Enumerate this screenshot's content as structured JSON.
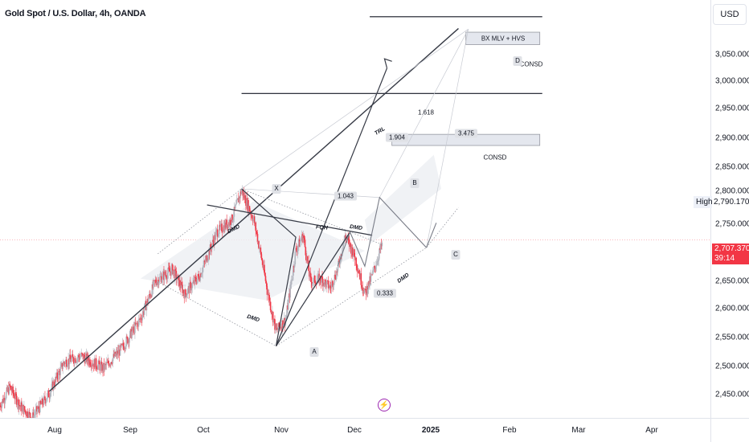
{
  "header": {
    "title": "Gold Spot / U.S. Dollar, 4h, OANDA",
    "currency_button": "USD"
  },
  "price_axis": {
    "ticks": [
      "3,050.000",
      "3,000.000",
      "2,950.000",
      "2,900.000",
      "2,850.000",
      "2,800.000",
      "2,750.000",
      "2,650.000",
      "2,600.000",
      "2,550.000",
      "2,500.000",
      "2,450.000"
    ],
    "high_label": "High",
    "high_value": "2,790.170",
    "current_price": "2,707.370",
    "countdown": "39:14",
    "current_price_color": "#f23645"
  },
  "time_axis": {
    "ticks": [
      "Aug",
      "Sep",
      "Oct",
      "Nov",
      "Dec",
      "2025",
      "Feb",
      "Mar",
      "Apr"
    ]
  },
  "chart_data": {
    "type": "line",
    "title": "Gold Spot / U.S. Dollar, 4h, OANDA",
    "ylabel": "USD",
    "ylim": [
      2420,
      3095
    ],
    "x_range": [
      "2024-07-25",
      "2025-04-30"
    ],
    "y_ticks": [
      2450,
      2500,
      2550,
      2600,
      2650,
      2700,
      2750,
      2800,
      2850,
      2900,
      2950,
      3000,
      3050
    ],
    "x_ticks": [
      "Aug",
      "Sep",
      "Oct",
      "Nov",
      "Dec",
      "2025",
      "Feb",
      "Mar",
      "Apr"
    ],
    "grid": false,
    "bull_color": "#b2b5be",
    "bear_color": "#f23645",
    "price_path": [
      {
        "date": "2024-07-25",
        "price": 2440
      },
      {
        "date": "2024-07-29",
        "price": 2470
      },
      {
        "date": "2024-08-02",
        "price": 2440
      },
      {
        "date": "2024-08-07",
        "price": 2420
      },
      {
        "date": "2024-08-14",
        "price": 2460
      },
      {
        "date": "2024-08-20",
        "price": 2510
      },
      {
        "date": "2024-08-27",
        "price": 2520
      },
      {
        "date": "2024-09-05",
        "price": 2500
      },
      {
        "date": "2024-09-12",
        "price": 2530
      },
      {
        "date": "2024-09-20",
        "price": 2580
      },
      {
        "date": "2024-09-26",
        "price": 2640
      },
      {
        "date": "2024-10-03",
        "price": 2660
      },
      {
        "date": "2024-10-08",
        "price": 2620
      },
      {
        "date": "2024-10-14",
        "price": 2650
      },
      {
        "date": "2024-10-21",
        "price": 2720
      },
      {
        "date": "2024-10-27",
        "price": 2740
      },
      {
        "date": "2024-10-31",
        "price": 2788
      },
      {
        "date": "2024-11-05",
        "price": 2740
      },
      {
        "date": "2024-11-08",
        "price": 2680
      },
      {
        "date": "2024-11-11",
        "price": 2615
      },
      {
        "date": "2024-11-14",
        "price": 2560
      },
      {
        "date": "2024-11-18",
        "price": 2580
      },
      {
        "date": "2024-11-22",
        "price": 2690
      },
      {
        "date": "2024-11-25",
        "price": 2715
      },
      {
        "date": "2024-11-28",
        "price": 2640
      },
      {
        "date": "2024-12-02",
        "price": 2645
      },
      {
        "date": "2024-12-06",
        "price": 2630
      },
      {
        "date": "2024-12-09",
        "price": 2660
      },
      {
        "date": "2024-12-12",
        "price": 2715
      },
      {
        "date": "2024-12-16",
        "price": 2680
      },
      {
        "date": "2024-12-20",
        "price": 2620
      },
      {
        "date": "2024-12-23",
        "price": 2650
      },
      {
        "date": "2024-12-27",
        "price": 2700
      }
    ],
    "harmonic_pattern": {
      "points": [
        {
          "label": "X",
          "date": "2024-10-31",
          "price": 2790
        },
        {
          "label": "A",
          "date": "2024-11-14",
          "price": 2536
        },
        {
          "label": "B",
          "date": "2024-12-26",
          "price": 2776
        },
        {
          "label": "C",
          "date": "2025-01-14",
          "price": 2695
        },
        {
          "label": "D",
          "date": "2025-01-31",
          "price": 3048
        }
      ],
      "ratios": [
        "1.043",
        "1.904",
        "3.475",
        "0.333"
      ]
    },
    "horizontal_levels": [
      {
        "label": "BX MLV + HVS",
        "price": 3068
      },
      {
        "label": "1.618",
        "price": 2944
      }
    ],
    "zones": [
      {
        "label": "CONSD",
        "top": 3043,
        "bottom": 3023
      },
      {
        "label": "CONSD",
        "top": 2878,
        "bottom": 2860
      }
    ],
    "annotations": [
      "TRL",
      "DMD",
      "FQH",
      "DMD",
      "DMD",
      "DMD"
    ]
  }
}
